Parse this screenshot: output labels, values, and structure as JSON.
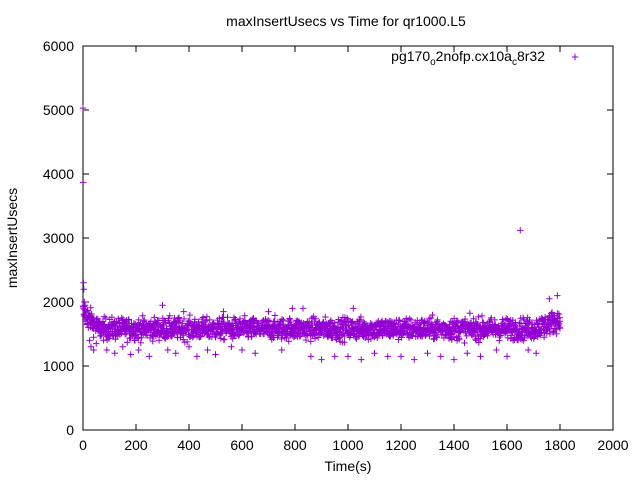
{
  "chart_data": {
    "type": "scatter",
    "title": "maxInsertUsecs vs Time for qr1000.L5",
    "xlabel": "Time(s)",
    "ylabel": "maxInsertUsecs",
    "xlim": [
      0,
      2000
    ],
    "ylim": [
      0,
      6000
    ],
    "xticks": [
      0,
      200,
      400,
      600,
      800,
      1000,
      1200,
      1400,
      1600,
      1800,
      2000
    ],
    "yticks": [
      0,
      1000,
      2000,
      3000,
      4000,
      5000,
      6000
    ],
    "grid": false,
    "legend_position": "top-right",
    "series": [
      {
        "name": "pg170_o2nofp.cx10a_c8r32",
        "color": "#9400d3",
        "marker": "+",
        "points": [
          [
            0,
            5030
          ],
          [
            1,
            3870
          ],
          [
            2,
            2300
          ],
          [
            3,
            2200
          ],
          [
            5,
            2000
          ],
          [
            8,
            1950
          ],
          [
            10,
            1850
          ],
          [
            15,
            1700
          ],
          [
            20,
            1600
          ],
          [
            25,
            1400
          ],
          [
            30,
            1300
          ],
          [
            40,
            1250
          ],
          [
            50,
            1350
          ],
          [
            60,
            1700
          ],
          [
            70,
            1500
          ],
          [
            90,
            1250
          ],
          [
            120,
            1200
          ],
          [
            150,
            1300
          ],
          [
            180,
            1180
          ],
          [
            210,
            1250
          ],
          [
            250,
            1150
          ],
          [
            300,
            1950
          ],
          [
            320,
            1250
          ],
          [
            350,
            1200
          ],
          [
            380,
            1850
          ],
          [
            400,
            1300
          ],
          [
            430,
            1150
          ],
          [
            470,
            1250
          ],
          [
            500,
            1180
          ],
          [
            530,
            1850
          ],
          [
            560,
            1300
          ],
          [
            600,
            1250
          ],
          [
            650,
            1200
          ],
          [
            700,
            1850
          ],
          [
            750,
            1250
          ],
          [
            790,
            1900
          ],
          [
            830,
            1900
          ],
          [
            860,
            1150
          ],
          [
            900,
            1100
          ],
          [
            950,
            1150
          ],
          [
            1000,
            1150
          ],
          [
            1020,
            1900
          ],
          [
            1050,
            1100
          ],
          [
            1100,
            1200
          ],
          [
            1150,
            1150
          ],
          [
            1200,
            1150
          ],
          [
            1250,
            1100
          ],
          [
            1300,
            1200
          ],
          [
            1350,
            1150
          ],
          [
            1400,
            1100
          ],
          [
            1450,
            1200
          ],
          [
            1500,
            1150
          ],
          [
            1560,
            1250
          ],
          [
            1600,
            1150
          ],
          [
            1650,
            3120
          ],
          [
            1680,
            1250
          ],
          [
            1710,
            1200
          ],
          [
            1740,
            1450
          ],
          [
            1760,
            2050
          ],
          [
            1790,
            2100
          ],
          [
            1800,
            1700
          ]
        ],
        "band": {
          "x_start": 0,
          "x_end": 1800,
          "count": 1800,
          "y_center": 1580,
          "y_spread": 120,
          "early_y_center": 1850,
          "late_y_center": 1720
        }
      }
    ]
  }
}
